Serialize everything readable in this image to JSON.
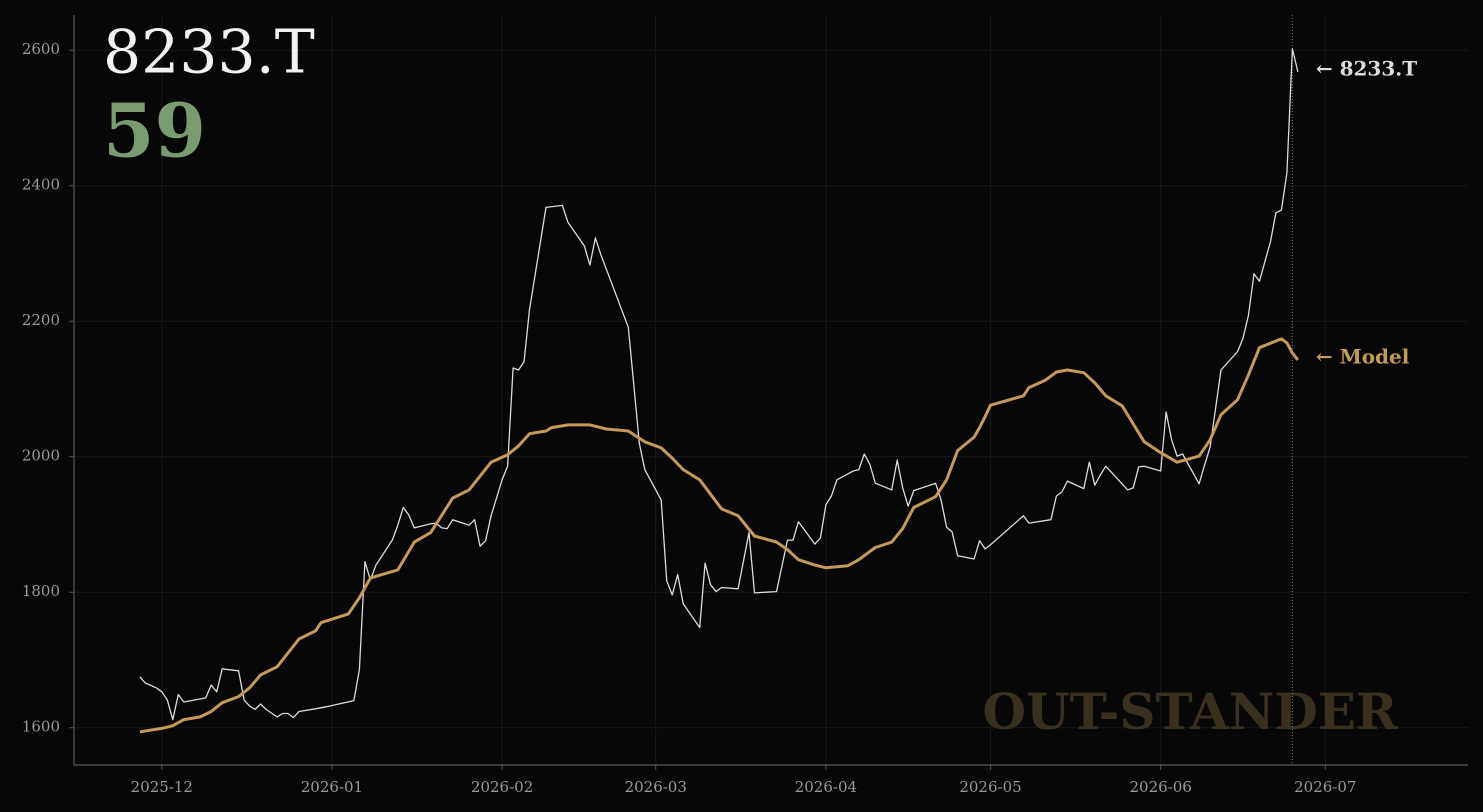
{
  "chart_data": {
    "type": "line",
    "title": "8233.T",
    "score": 59,
    "watermark": "OUT-STANDER",
    "xlim": [
      "2025-11-15",
      "2026-07-27"
    ],
    "xticks": [
      {
        "value": "2025-12-01",
        "label": "2025-12"
      },
      {
        "value": "2026-01-01",
        "label": "2026-01"
      },
      {
        "value": "2026-02-01",
        "label": "2026-02"
      },
      {
        "value": "2026-03-01",
        "label": "2026-03"
      },
      {
        "value": "2026-04-01",
        "label": "2026-04"
      },
      {
        "value": "2026-05-01",
        "label": "2026-05"
      },
      {
        "value": "2026-06-01",
        "label": "2026-06"
      },
      {
        "value": "2026-07-01",
        "label": "2026-07"
      }
    ],
    "ylim": [
      1545,
      2652
    ],
    "yticks": [
      1600,
      1800,
      2000,
      2200,
      2400,
      2600
    ],
    "grid": true,
    "marker_x": "2026-06-25",
    "series": [
      {
        "name": "8233.T",
        "end_label": "← 8233.T",
        "color": "#dcdcdc",
        "width": 1.3,
        "x": [
          "2025-11-27",
          "2025-11-28",
          "2025-11-30",
          "2025-12-01",
          "2025-12-02",
          "2025-12-03",
          "2025-12-04",
          "2025-12-05",
          "2025-12-07",
          "2025-12-09",
          "2025-12-10",
          "2025-12-11",
          "2025-12-12",
          "2025-12-15",
          "2025-12-16",
          "2025-12-17",
          "2025-12-18",
          "2025-12-19",
          "2025-12-20",
          "2025-12-22",
          "2025-12-23",
          "2025-12-24",
          "2025-12-25",
          "2025-12-26",
          "2025-12-29",
          "2025-12-31",
          "2026-01-05",
          "2026-01-06",
          "2026-01-07",
          "2026-01-08",
          "2026-01-09",
          "2026-01-12",
          "2026-01-13",
          "2026-01-14",
          "2026-01-15",
          "2026-01-16",
          "2026-01-19",
          "2026-01-20",
          "2026-01-21",
          "2026-01-22",
          "2026-01-23",
          "2026-01-26",
          "2026-01-27",
          "2026-01-28",
          "2026-01-29",
          "2026-01-30",
          "2026-02-01",
          "2026-02-02",
          "2026-02-03",
          "2026-02-04",
          "2026-02-05",
          "2026-02-06",
          "2026-02-09",
          "2026-02-12",
          "2026-02-13",
          "2026-02-16",
          "2026-02-17",
          "2026-02-18",
          "2026-02-19",
          "2026-02-24",
          "2026-02-25",
          "2026-02-26",
          "2026-02-27",
          "2026-03-02",
          "2026-03-03",
          "2026-03-04",
          "2026-03-05",
          "2026-03-06",
          "2026-03-09",
          "2026-03-10",
          "2026-03-11",
          "2026-03-12",
          "2026-03-13",
          "2026-03-16",
          "2026-03-18",
          "2026-03-19",
          "2026-03-23",
          "2026-03-25",
          "2026-03-26",
          "2026-03-27",
          "2026-03-30",
          "2026-03-31",
          "2026-04-01",
          "2026-04-02",
          "2026-04-03",
          "2026-04-06",
          "2026-04-07",
          "2026-04-08",
          "2026-04-09",
          "2026-04-10",
          "2026-04-13",
          "2026-04-14",
          "2026-04-15",
          "2026-04-16",
          "2026-04-17",
          "2026-04-21",
          "2026-04-22",
          "2026-04-23",
          "2026-04-24",
          "2026-04-25",
          "2026-04-28",
          "2026-04-29",
          "2026-04-30",
          "2026-05-01",
          "2026-05-07",
          "2026-05-08",
          "2026-05-12",
          "2026-05-13",
          "2026-05-14",
          "2026-05-15",
          "2026-05-18",
          "2026-05-19",
          "2026-05-20",
          "2026-05-21",
          "2026-05-22",
          "2026-05-26",
          "2026-05-27",
          "2026-05-28",
          "2026-05-29",
          "2026-06-01",
          "2026-06-02",
          "2026-06-03",
          "2026-06-04",
          "2026-06-05",
          "2026-06-08",
          "2026-06-09",
          "2026-06-10",
          "2026-06-12",
          "2026-06-15",
          "2026-06-16",
          "2026-06-17",
          "2026-06-18",
          "2026-06-19",
          "2026-06-21",
          "2026-06-22",
          "2026-06-23",
          "2026-06-24",
          "2026-06-25",
          "2026-06-26"
        ],
        "values": [
          1675,
          1666,
          1659,
          1653,
          1641,
          1612,
          1649,
          1638,
          1641,
          1644,
          1663,
          1653,
          1687,
          1684,
          1641,
          1632,
          1627,
          1635,
          1627,
          1616,
          1621,
          1621,
          1615,
          1624,
          1628,
          1631,
          1640,
          1686,
          1845,
          1818,
          1840,
          1877,
          1899,
          1925,
          1914,
          1895,
          1901,
          1902,
          1895,
          1894,
          1907,
          1899,
          1907,
          1868,
          1876,
          1913,
          1966,
          1986,
          2131,
          2128,
          2140,
          2217,
          2368,
          2371,
          2346,
          2311,
          2283,
          2323,
          2298,
          2191,
          2106,
          2020,
          1981,
          1936,
          1817,
          1796,
          1826,
          1783,
          1748,
          1843,
          1811,
          1801,
          1807,
          1805,
          1888,
          1799,
          1801,
          1877,
          1877,
          1904,
          1871,
          1880,
          1929,
          1942,
          1966,
          1979,
          1981,
          2004,
          1989,
          1961,
          1951,
          1995,
          1954,
          1927,
          1950,
          1961,
          1936,
          1896,
          1889,
          1854,
          1849,
          1876,
          1864,
          1870,
          1913,
          1902,
          1907,
          1942,
          1948,
          1964,
          1953,
          1992,
          1958,
          1973,
          1986,
          1951,
          1954,
          1985,
          1986,
          1979,
          2066,
          2025,
          2001,
          2004,
          1960,
          1988,
          2014,
          2128,
          2155,
          2175,
          2209,
          2270,
          2259,
          2317,
          2360,
          2364,
          2419,
          2602,
          2568
        ]
      },
      {
        "name": "Model",
        "end_label": "← Model",
        "color": "#c49a5a",
        "width": 3,
        "x": [
          "2025-11-27",
          "2025-12-01",
          "2025-12-03",
          "2025-12-05",
          "2025-12-08",
          "2025-12-10",
          "2025-12-12",
          "2025-12-15",
          "2025-12-17",
          "2025-12-19",
          "2025-12-22",
          "2025-12-26",
          "2025-12-29",
          "2025-12-30",
          "2026-01-04",
          "2026-01-06",
          "2026-01-08",
          "2026-01-13",
          "2026-01-16",
          "2026-01-19",
          "2026-01-23",
          "2026-01-26",
          "2026-01-30",
          "2026-02-02",
          "2026-02-04",
          "2026-02-06",
          "2026-02-09",
          "2026-02-10",
          "2026-02-13",
          "2026-02-17",
          "2026-02-20",
          "2026-02-24",
          "2026-02-27",
          "2026-03-02",
          "2026-03-04",
          "2026-03-06",
          "2026-03-09",
          "2026-03-13",
          "2026-03-16",
          "2026-03-19",
          "2026-03-23",
          "2026-03-25",
          "2026-03-27",
          "2026-03-30",
          "2026-04-01",
          "2026-04-05",
          "2026-04-07",
          "2026-04-10",
          "2026-04-13",
          "2026-04-15",
          "2026-04-17",
          "2026-04-21",
          "2026-04-23",
          "2026-04-25",
          "2026-04-28",
          "2026-04-29",
          "2026-04-30",
          "2026-05-01",
          "2026-05-07",
          "2026-05-08",
          "2026-05-11",
          "2026-05-13",
          "2026-05-15",
          "2026-05-18",
          "2026-05-20",
          "2026-05-22",
          "2026-05-25",
          "2026-05-29",
          "2026-06-01",
          "2026-06-04",
          "2026-06-08",
          "2026-06-10",
          "2026-06-12",
          "2026-06-15",
          "2026-06-17",
          "2026-06-19",
          "2026-06-23",
          "2026-06-24",
          "2026-06-25",
          "2026-06-26"
        ],
        "values": [
          1594,
          1599,
          1603,
          1612,
          1616,
          1624,
          1637,
          1646,
          1659,
          1678,
          1690,
          1731,
          1743,
          1755,
          1768,
          1792,
          1821,
          1833,
          1874,
          1888,
          1939,
          1951,
          1992,
          2003,
          2016,
          2034,
          2038,
          2043,
          2047,
          2047,
          2041,
          2038,
          2022,
          2013,
          1998,
          1981,
          1966,
          1923,
          1913,
          1883,
          1874,
          1863,
          1848,
          1840,
          1836,
          1839,
          1848,
          1866,
          1874,
          1894,
          1925,
          1941,
          1966,
          2009,
          2029,
          2043,
          2059,
          2076,
          2090,
          2102,
          2113,
          2125,
          2128,
          2124,
          2109,
          2090,
          2075,
          2022,
          2006,
          1992,
          2001,
          2025,
          2062,
          2084,
          2121,
          2161,
          2174,
          2168,
          2153,
          2143
        ]
      }
    ]
  }
}
